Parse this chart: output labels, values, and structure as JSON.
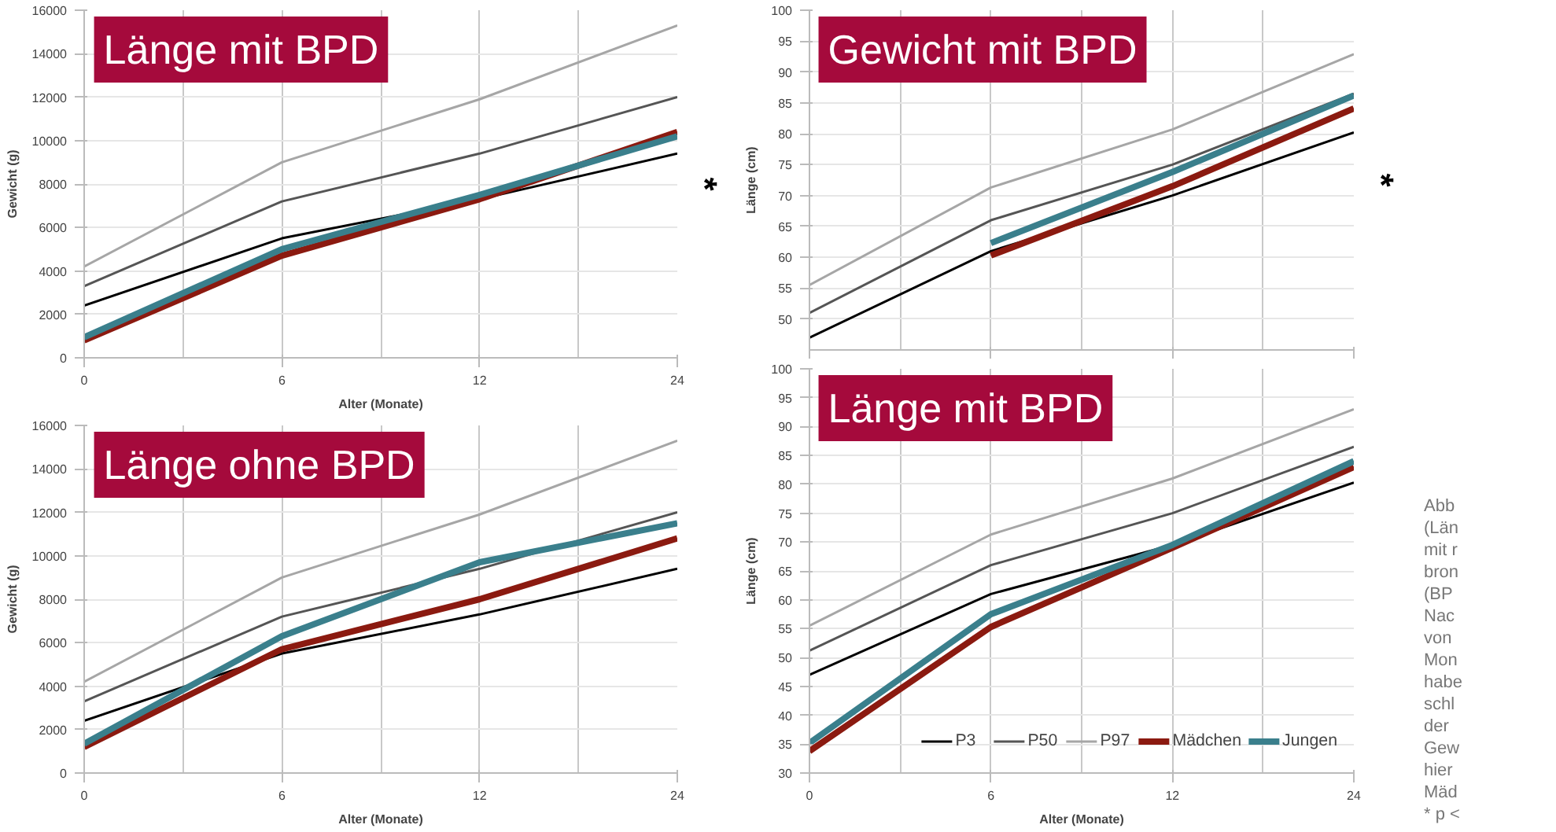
{
  "chart_data": [
    {
      "type": "line",
      "title": "Länge mit BPD",
      "xlabel": "Alter (Monate)",
      "ylabel": "Gewicht (g)",
      "categories": [
        "0",
        "6",
        "12",
        "24"
      ],
      "ylim": [
        0,
        16000
      ],
      "yticks": [
        0,
        2000,
        4000,
        6000,
        8000,
        10000,
        12000,
        14000,
        16000
      ],
      "grid": true,
      "annotations": [
        "*"
      ],
      "series": [
        {
          "color": "#000000",
          "values": [
            2400,
            5500,
            7300,
            9400
          ]
        },
        {
          "color": "#555555",
          "values": [
            3300,
            7200,
            9400,
            12000
          ]
        },
        {
          "color": "#a6a6a6",
          "values": [
            4200,
            9000,
            11900,
            15300
          ]
        },
        {
          "color": "#8b1a10",
          "values": [
            800,
            4700,
            7300,
            10400
          ]
        },
        {
          "color": "#3a7f8c",
          "values": [
            950,
            5000,
            7500,
            10200
          ]
        }
      ]
    },
    {
      "type": "line",
      "title": "Länge ohne BPD",
      "xlabel": "Alter (Monate)",
      "ylabel": "Gewicht (g)",
      "categories": [
        "0",
        "6",
        "12",
        "24"
      ],
      "ylim": [
        0,
        16000
      ],
      "yticks": [
        0,
        2000,
        4000,
        6000,
        8000,
        10000,
        12000,
        14000,
        16000
      ],
      "grid": true,
      "series": [
        {
          "color": "#000000",
          "values": [
            2400,
            5500,
            7300,
            9400
          ]
        },
        {
          "color": "#555555",
          "values": [
            3300,
            7200,
            9400,
            12000
          ]
        },
        {
          "color": "#a6a6a6",
          "values": [
            4200,
            9000,
            11900,
            15300
          ]
        },
        {
          "color": "#8b1a10",
          "values": [
            1200,
            5700,
            8000,
            10800
          ]
        },
        {
          "color": "#3a7f8c",
          "values": [
            1350,
            6300,
            9700,
            11500
          ]
        }
      ]
    },
    {
      "type": "line",
      "title": "Gewicht mit BPD",
      "ylabel": "Länge (cm)",
      "categories": [
        "0",
        "6",
        "12",
        "24"
      ],
      "tick_labels": "y",
      "ylim": [
        45,
        100
      ],
      "yticks": [
        50,
        55,
        60,
        65,
        70,
        75,
        80,
        85,
        90,
        95,
        100
      ],
      "grid": true,
      "annotations": [
        "*"
      ],
      "series": [
        {
          "color": "#000000",
          "values": [
            47,
            61,
            70,
            80.2
          ]
        },
        {
          "color": "#555555",
          "values": [
            51,
            66,
            75,
            86.5
          ]
        },
        {
          "color": "#a6a6a6",
          "values": [
            55.5,
            71.3,
            80.7,
            92.9
          ]
        },
        {
          "color": "#8b1a10",
          "values": [
            null,
            60.3,
            71.5,
            84.1
          ]
        },
        {
          "color": "#3a7f8c",
          "values": [
            null,
            62.3,
            73.8,
            86.2
          ]
        }
      ]
    },
    {
      "type": "line",
      "title": "Länge mit BPD",
      "xlabel": "Alter (Monate)",
      "ylabel": "Länge (cm)",
      "categories": [
        "0",
        "6",
        "12",
        "24"
      ],
      "ylim": [
        30,
        100
      ],
      "yticks": [
        30,
        35,
        40,
        45,
        50,
        55,
        60,
        65,
        70,
        75,
        80,
        85,
        90,
        95,
        100
      ],
      "grid": true,
      "legend": "bottom right",
      "series": [
        {
          "name": "P3",
          "color": "#000000",
          "values": [
            47,
            61,
            69.5,
            80.3
          ]
        },
        {
          "name": "P50",
          "color": "#555555",
          "values": [
            51.2,
            66,
            75,
            86.5
          ]
        },
        {
          "name": "P97",
          "color": "#a6a6a6",
          "values": [
            55.5,
            71.3,
            81,
            93
          ]
        },
        {
          "name": "Mädchen",
          "color": "#8b1a10",
          "values": [
            33.8,
            55.3,
            69,
            83
          ]
        },
        {
          "name": "Jungen",
          "color": "#3a7f8c",
          "values": [
            35.2,
            57.5,
            69.5,
            84
          ]
        }
      ]
    },
    {
      "type": "other",
      "annotations": [
        "Abb",
        "(Län",
        "mit r",
        "bron",
        "(BP",
        "Nac",
        "von",
        "Mon",
        "habe",
        "schl",
        "der",
        "Gew",
        "hier",
        "Mäd",
        "* p <"
      ]
    }
  ]
}
